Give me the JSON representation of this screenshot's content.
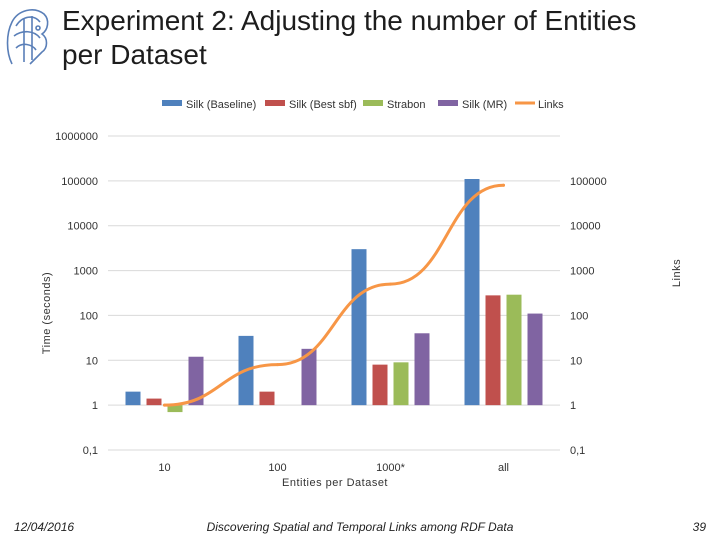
{
  "slide": {
    "title": "Experiment 2: Adjusting the number of Entities per Dataset",
    "date": "12/04/2016",
    "footer_title": "Discovering Spatial and Temporal Links among RDF Data",
    "page_number": "39"
  },
  "logo": {
    "icon": "athena-head-icon",
    "color": "#5a7fb8"
  },
  "chart_data": {
    "type": "bar",
    "scale": "log",
    "categories": [
      "10",
      "100",
      "1000*",
      "all"
    ],
    "xlabel": "Entities per Dataset",
    "ylabel": "Time (seconds)",
    "y2label": "Links",
    "yticks": [
      "1000000",
      "100000",
      "10000",
      "1000",
      "100",
      "10",
      "1",
      "0,1"
    ],
    "y2ticks": [
      "100000",
      "10000",
      "1000",
      "100",
      "10",
      "1",
      "0,1"
    ],
    "ylim": [
      0.1,
      1000000
    ],
    "y2lim": [
      0.1,
      1000000
    ],
    "series": [
      {
        "name": "Silk (Baseline)",
        "color": "#4f81bd",
        "values": [
          2,
          35,
          3000,
          110000
        ]
      },
      {
        "name": "Silk (Best sbf)",
        "color": "#c0504d",
        "values": [
          1.4,
          2,
          8,
          280
        ]
      },
      {
        "name": "Strabon",
        "color": "#9bbb59",
        "values": [
          0.7,
          null,
          9,
          290
        ]
      },
      {
        "name": "Silk (MR)",
        "color": "#8064a2",
        "values": [
          12,
          18,
          40,
          110
        ]
      }
    ],
    "line": {
      "name": "Links",
      "color": "#f79646",
      "axis": "secondary",
      "values": [
        1,
        8,
        500,
        80000
      ]
    }
  }
}
